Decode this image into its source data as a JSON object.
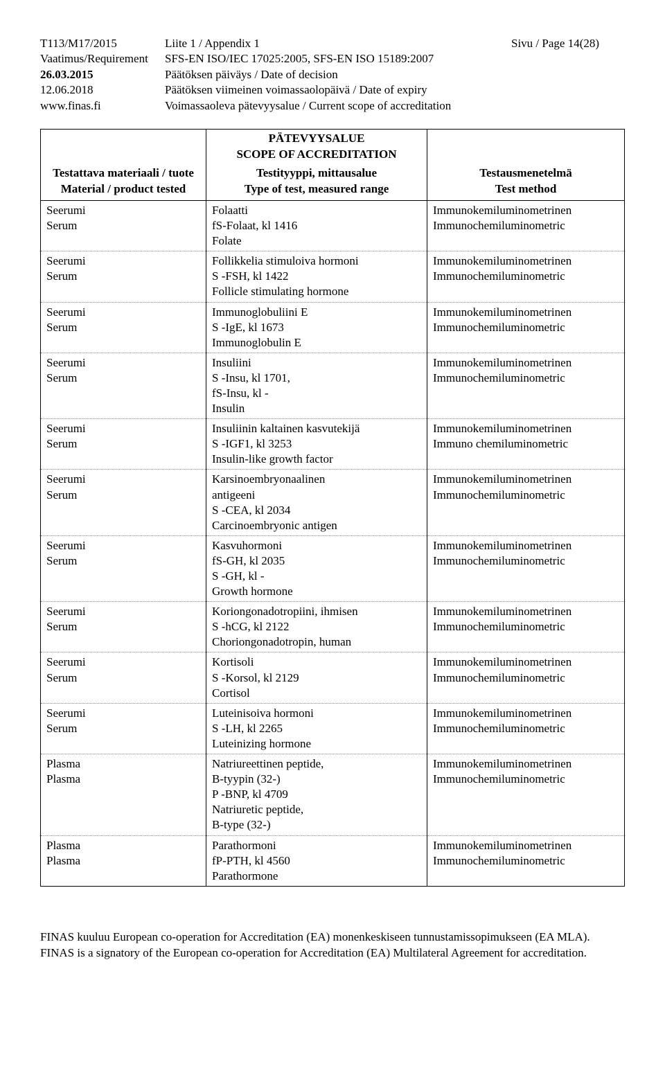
{
  "header": {
    "left": {
      "l1": "T113/M17/2015",
      "l2": "Vaatimus/Requirement",
      "l3": "26.03.2015",
      "l4": "12.06.2018",
      "l5": "www.finas.fi"
    },
    "mid": {
      "l1": "Liite 1 / Appendix 1",
      "l2": "SFS-EN ISO/IEC 17025:2005, SFS-EN ISO 15189:2007",
      "l3": "Päätöksen päiväys / Date of decision",
      "l4": "Päätöksen viimeinen voimassaolopäivä / Date of expiry",
      "l5": "Voimassaoleva pätevyysalue / Current scope of accreditation"
    },
    "right": "Sivu / Page 14(28)"
  },
  "accred": {
    "line1": "PÄTEVYYSALUE",
    "line2": "SCOPE OF ACCREDITATION"
  },
  "columns": {
    "c1a": "Testattava materiaali / tuote",
    "c1b": "Material / product tested",
    "c2a": "Testityyppi, mittausalue",
    "c2b": "Type of test, measured range",
    "c3a": "Testausmenetelmä",
    "c3b": "Test method"
  },
  "rows": [
    {
      "a": "Seerumi\nSerum",
      "b": "Folaatti\nfS-Folaat, kl 1416\nFolate",
      "c": "Immunokemiluminometrinen\nImmunochemiluminometric"
    },
    {
      "a": "Seerumi\nSerum",
      "b": "Follikkelia stimuloiva hormoni\nS -FSH, kl 1422\nFollicle stimulating hormone",
      "c": "Immunokemiluminometrinen\nImmunochemiluminometric"
    },
    {
      "a": "Seerumi\nSerum",
      "b": "Immunoglobuliini E\nS -IgE, kl 1673\nImmunoglobulin E",
      "c": "Immunokemiluminometrinen\nImmunochemiluminometric"
    },
    {
      "a": "Seerumi\nSerum",
      "b": "Insuliini\nS -Insu, kl 1701,\nfS-Insu, kl -\nInsulin",
      "c": "Immunokemiluminometrinen\nImmunochemiluminometric"
    },
    {
      "a": "Seerumi\nSerum",
      "b": "Insuliinin kaltainen kasvutekijä\nS -IGF1, kl 3253\nInsulin-like growth factor",
      "c": "Immunokemiluminometrinen\nImmuno chemiluminometric"
    },
    {
      "a": "Seerumi\nSerum",
      "b": "Karsinoembryonaalinen\nantigeeni\nS -CEA, kl 2034\nCarcinoembryonic antigen",
      "c": "Immunokemiluminometrinen\nImmunochemiluminometric"
    },
    {
      "a": "Seerumi\nSerum",
      "b": "Kasvuhormoni\nfS-GH, kl 2035\nS -GH, kl -\nGrowth hormone",
      "c": "Immunokemiluminometrinen\nImmunochemiluminometric"
    },
    {
      "a": "Seerumi\nSerum",
      "b": "Koriongonadotropiini, ihmisen\nS -hCG, kl 2122\nChoriongonadotropin, human",
      "c": "Immunokemiluminometrinen\nImmunochemiluminometric"
    },
    {
      "a": "Seerumi\nSerum",
      "b": "Kortisoli\nS -Korsol, kl 2129\nCortisol",
      "c": "Immunokemiluminometrinen\nImmunochemiluminometric"
    },
    {
      "a": "Seerumi\nSerum",
      "b": "Luteinisoiva hormoni\nS -LH, kl 2265\nLuteinizing hormone",
      "c": "Immunokemiluminometrinen\nImmunochemiluminometric"
    },
    {
      "a": "Plasma\nPlasma",
      "b": "Natriureettinen peptide,\nB-tyypin (32-)\nP -BNP, kl 4709\nNatriuretic peptide,\nB-type (32-)",
      "c": "Immunokemiluminometrinen\nImmunochemiluminometric"
    },
    {
      "a": "Plasma\nPlasma",
      "b": "Parathormoni\nfP-PTH, kl 4560\nParathormone",
      "c": "Immunokemiluminometrinen\nImmunochemiluminometric"
    }
  ],
  "footer": {
    "l1": "FINAS kuuluu European co-operation for Accreditation (EA) monenkeskiseen tunnustamissopimukseen (EA MLA).",
    "l2": "FINAS is a signatory of the European co-operation for Accreditation (EA) Multilateral Agreement for accreditation."
  }
}
